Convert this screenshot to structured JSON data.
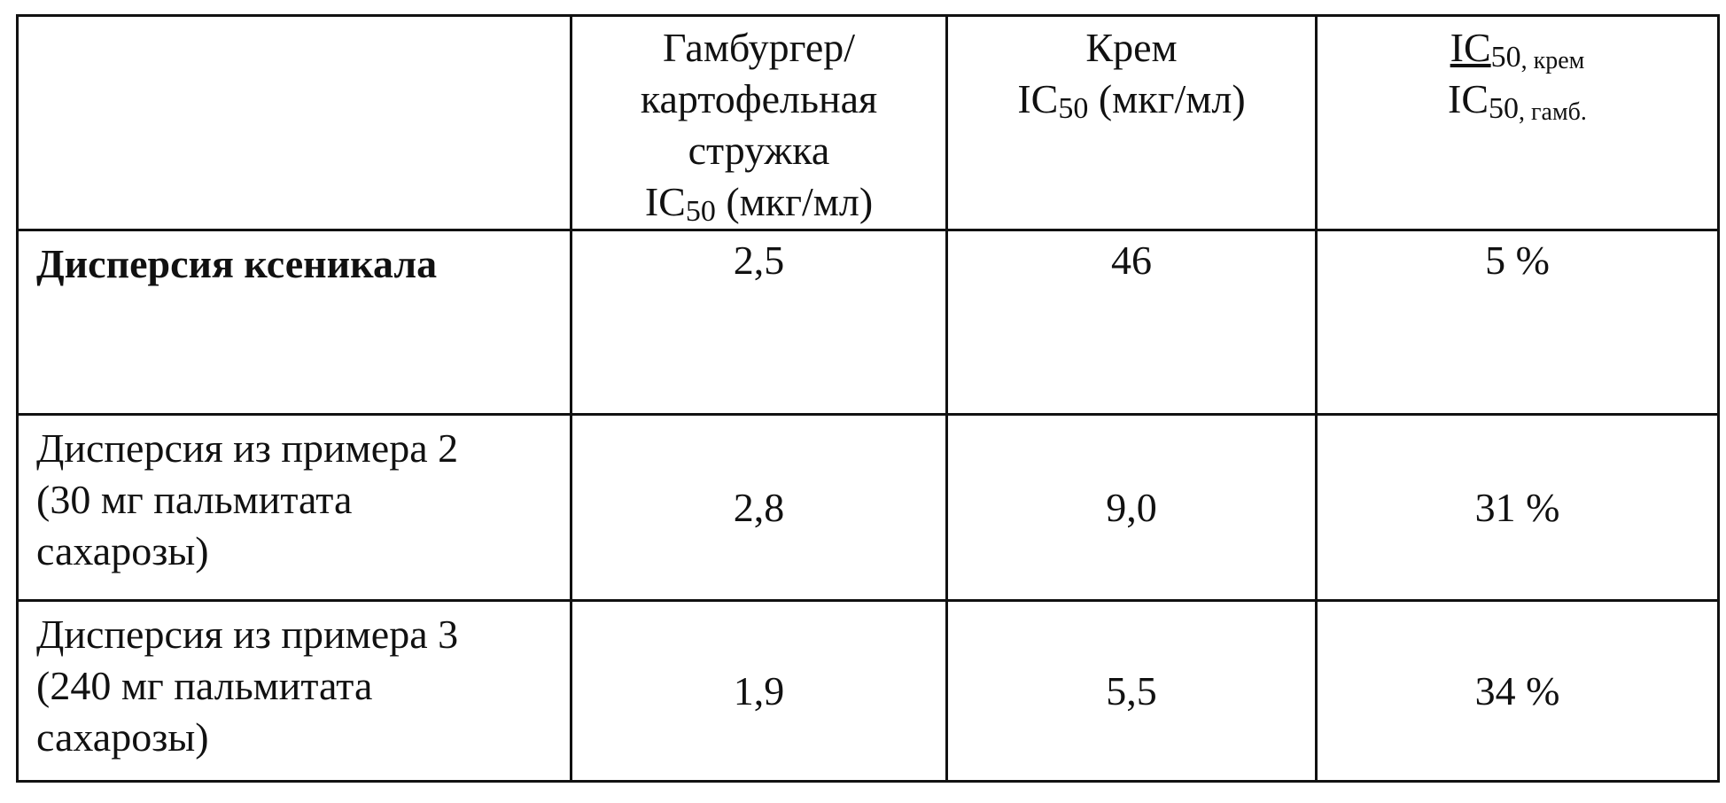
{
  "table": {
    "header": {
      "empty": "",
      "col1": [
        "Гамбургер/",
        "картофельная",
        "стружка"
      ],
      "col1_unit_prefix": "IC",
      "col1_unit_sub": "50",
      "col1_unit_suffix": " (мкг/мл)",
      "col2_title": "Крем",
      "col2_unit_prefix": "IC",
      "col2_unit_sub": "50",
      "col2_unit_suffix": " (мкг/мл)",
      "col3_num_prefix": "IC",
      "col3_num_sub": "50",
      "col3_num_suffix": ", крем",
      "col3_den_prefix": "IC",
      "col3_den_sub": "50",
      "col3_den_suffix": ", гамб."
    },
    "rows": [
      {
        "label": [
          "Дисперсия ксеникала"
        ],
        "hamburger": "2,5",
        "cream": "46",
        "ratio": "5 %"
      },
      {
        "label": [
          "Дисперсия из примера 2",
          "(30 мг пальмитата",
          "сахарозы)"
        ],
        "hamburger": "2,8",
        "cream": "9,0",
        "ratio": "31 %"
      },
      {
        "label": [
          "Дисперсия из примера 3",
          "(240 мг пальмитата",
          "сахарозы)"
        ],
        "hamburger": "1,9",
        "cream": "5,5",
        "ratio": "34 %"
      }
    ]
  }
}
